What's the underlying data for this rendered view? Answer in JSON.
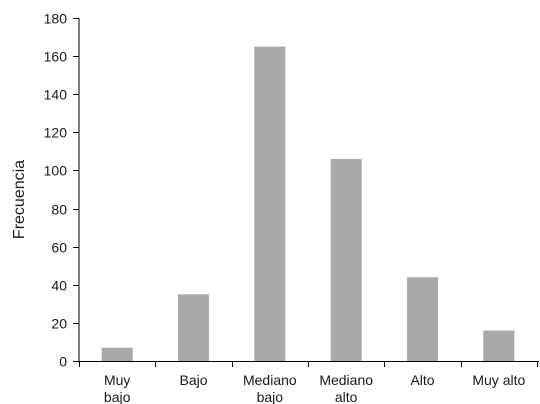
{
  "chart_data": {
    "type": "bar",
    "title": "",
    "xlabel": "",
    "ylabel": "Frecuencia",
    "categories": [
      [
        "Muy",
        "bajo"
      ],
      [
        "Bajo"
      ],
      [
        "Mediano",
        "bajo"
      ],
      [
        "Mediano",
        "alto"
      ],
      [
        "Alto"
      ],
      [
        "Muy alto"
      ]
    ],
    "values": [
      7,
      35,
      165,
      106,
      44,
      16
    ],
    "ylim": [
      0,
      180
    ],
    "yticks": [
      0,
      20,
      40,
      60,
      80,
      100,
      120,
      140,
      160,
      180
    ],
    "grid": false,
    "legend": "none",
    "bar_color": "#a9a9a9"
  }
}
